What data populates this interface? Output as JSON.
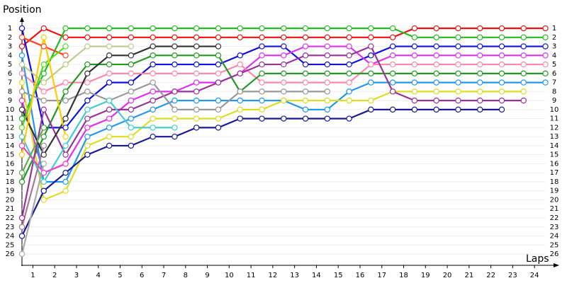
{
  "chart_data": {
    "type": "line",
    "y_title": "Position",
    "x_title": "Laps",
    "x": [
      0,
      1,
      2,
      3,
      4,
      5,
      6,
      7,
      8,
      9,
      10,
      11,
      12,
      13,
      14,
      15,
      16,
      17,
      18,
      19,
      20,
      21,
      22,
      23,
      24
    ],
    "xlim": [
      0,
      24.6
    ],
    "xticks": [
      {
        "value": 0.5,
        "label": "1"
      },
      {
        "value": 1.5,
        "label": "2"
      },
      {
        "value": 2.5,
        "label": "3"
      },
      {
        "value": 3.5,
        "label": "4"
      },
      {
        "value": 4.5,
        "label": "5"
      },
      {
        "value": 5.5,
        "label": "6"
      },
      {
        "value": 6.5,
        "label": "7"
      },
      {
        "value": 7.5,
        "label": "8"
      },
      {
        "value": 8.5,
        "label": "9"
      },
      {
        "value": 9.5,
        "label": "10"
      },
      {
        "value": 10.5,
        "label": "11"
      },
      {
        "value": 11.5,
        "label": "12"
      },
      {
        "value": 12.5,
        "label": "13"
      },
      {
        "value": 13.5,
        "label": "14"
      },
      {
        "value": 14.5,
        "label": "15"
      },
      {
        "value": 15.5,
        "label": "16"
      },
      {
        "value": 16.5,
        "label": "17"
      },
      {
        "value": 17.5,
        "label": "18"
      },
      {
        "value": 18.5,
        "label": "19"
      },
      {
        "value": 19.5,
        "label": "20"
      },
      {
        "value": 20.5,
        "label": "21"
      },
      {
        "value": 21.5,
        "label": "22"
      },
      {
        "value": 22.5,
        "label": "23"
      },
      {
        "value": 23.5,
        "label": "24"
      }
    ],
    "ylim": [
      27.25,
      -0.1
    ],
    "yticks": [
      1,
      2,
      3,
      4,
      5,
      6,
      7,
      8,
      9,
      10,
      11,
      12,
      13,
      14,
      15,
      16,
      17,
      18,
      19,
      20,
      21,
      22,
      23,
      24,
      25,
      26
    ],
    "grid": true,
    "series": [
      {
        "color": "#ee1111",
        "values": [
          3,
          1,
          2,
          2,
          2,
          2,
          2,
          2,
          2,
          2,
          2,
          2,
          2,
          2,
          2,
          2,
          2,
          2,
          1,
          1,
          1,
          1,
          1,
          1,
          1
        ]
      },
      {
        "color": "#22bb22",
        "values": [
          11,
          6,
          1,
          1,
          1,
          1,
          1,
          1,
          1,
          1,
          1,
          1,
          1,
          1,
          1,
          1,
          1,
          1,
          2,
          2,
          2,
          2,
          2,
          2,
          2
        ]
      },
      {
        "color": "#1111dd",
        "values": [
          1,
          12,
          12,
          9,
          7,
          7,
          5,
          5,
          5,
          5,
          4,
          3,
          3,
          5,
          5,
          5,
          4,
          3,
          3,
          3,
          3,
          3,
          3,
          3,
          3
        ]
      },
      {
        "color": "#dd33ee",
        "values": [
          9,
          17,
          16,
          12,
          11,
          9,
          8,
          8,
          7,
          7,
          6,
          4,
          4,
          3,
          3,
          3,
          5,
          4,
          4,
          4,
          4,
          4,
          4,
          4,
          4
        ]
      },
      {
        "color": "#ff88aa",
        "values": [
          6,
          8,
          7,
          7,
          6,
          6,
          6,
          6,
          6,
          6,
          5,
          7,
          7,
          7,
          7,
          7,
          5,
          5,
          5,
          5,
          5,
          5,
          5,
          5,
          5
        ]
      },
      {
        "color": "#229922",
        "values": [
          18,
          13,
          8,
          5,
          5,
          5,
          4,
          4,
          4,
          4,
          8,
          6,
          6,
          6,
          6,
          6,
          6,
          6,
          6,
          6,
          6,
          6,
          6,
          6,
          6
        ]
      },
      {
        "color": "#2299ee",
        "values": [
          4,
          18,
          18,
          13,
          12,
          11,
          10,
          9,
          9,
          9,
          9,
          9,
          9,
          10,
          10,
          8,
          7,
          7,
          7,
          7,
          7,
          7,
          7,
          7,
          7
        ]
      },
      {
        "color": "#dddd22",
        "values": [
          7,
          20,
          19,
          14,
          13,
          13,
          11,
          11,
          11,
          11,
          10,
          10,
          9,
          9,
          9,
          9,
          9,
          8,
          8,
          8,
          8,
          8,
          8,
          8,
          null
        ]
      },
      {
        "color": "#993399",
        "values": [
          22,
          10,
          15,
          11,
          10,
          10,
          9,
          8,
          8,
          7,
          6,
          5,
          5,
          4,
          4,
          4,
          3,
          8,
          9,
          9,
          9,
          9,
          9,
          9,
          null
        ]
      },
      {
        "color": "#1a1a99",
        "values": [
          24,
          19,
          17,
          15,
          14,
          14,
          13,
          13,
          12,
          12,
          11,
          11,
          11,
          11,
          11,
          11,
          10,
          10,
          10,
          10,
          10,
          10,
          10,
          null,
          null
        ]
      },
      {
        "color": "#999999",
        "values": [
          8,
          9,
          9,
          8,
          9,
          8,
          7,
          10,
          10,
          10,
          8,
          8,
          8,
          8,
          8,
          null,
          null,
          null,
          null,
          null,
          null,
          null,
          null,
          null,
          null
        ]
      },
      {
        "color": "#333333",
        "values": [
          10,
          15,
          11,
          6,
          4,
          4,
          3,
          3,
          3,
          3,
          null,
          null,
          null,
          null,
          null,
          null,
          null,
          null,
          null,
          null,
          null,
          null,
          null,
          null,
          null
        ]
      },
      {
        "color": "#bbcc88",
        "values": [
          5,
          7,
          5,
          3,
          3,
          3,
          null,
          null,
          null,
          null,
          null,
          null,
          null,
          null,
          null,
          null,
          null,
          null,
          null,
          null,
          null,
          null,
          null,
          null,
          null
        ]
      },
      {
        "color": "#44cccc",
        "values": [
          13,
          18,
          14,
          10,
          9,
          12,
          12,
          12,
          null,
          null,
          null,
          null,
          null,
          null,
          null,
          null,
          null,
          null,
          null,
          null,
          null,
          null,
          null,
          null,
          null
        ]
      },
      {
        "color": "#ff4422",
        "values": [
          2,
          3,
          4,
          null,
          null,
          null,
          null,
          null,
          null,
          null,
          null,
          null,
          null,
          null,
          null,
          null,
          null,
          null,
          null,
          null,
          null,
          null,
          null,
          null,
          null
        ]
      },
      {
        "color": "#55dd22",
        "values": [
          12,
          5,
          3,
          null,
          null,
          null,
          null,
          null,
          null,
          null,
          null,
          null,
          null,
          null,
          null,
          null,
          null,
          null,
          null,
          null,
          null,
          null,
          null,
          null,
          null
        ]
      },
      {
        "color": "#ffcc00",
        "values": [
          15,
          2,
          13,
          null,
          null,
          null,
          null,
          null,
          null,
          null,
          null,
          null,
          null,
          null,
          null,
          null,
          null,
          null,
          null,
          null,
          null,
          null,
          null,
          null,
          null
        ]
      },
      {
        "color": "#ee44cc",
        "values": [
          14,
          17,
          16,
          null,
          null,
          null,
          null,
          null,
          null,
          null,
          null,
          null,
          null,
          null,
          null,
          null,
          null,
          null,
          null,
          null,
          null,
          null,
          null,
          null,
          null
        ]
      },
      {
        "color": "#66aa55",
        "values": [
          17,
          12,
          null,
          null,
          null,
          null,
          null,
          null,
          null,
          null,
          null,
          null,
          null,
          null,
          null,
          null,
          null,
          null,
          null,
          null,
          null,
          null,
          null,
          null,
          null
        ]
      },
      {
        "color": "#aa7799",
        "values": [
          23,
          14,
          null,
          null,
          null,
          null,
          null,
          null,
          null,
          null,
          null,
          null,
          null,
          null,
          null,
          null,
          null,
          null,
          null,
          null,
          null,
          null,
          null,
          null,
          null
        ]
      },
      {
        "color": "#aaaaaa",
        "values": [
          26,
          16,
          null,
          null,
          null,
          null,
          null,
          null,
          null,
          null,
          null,
          null,
          null,
          null,
          null,
          null,
          null,
          null,
          null,
          null,
          null,
          null,
          null,
          null,
          null
        ]
      }
    ]
  }
}
